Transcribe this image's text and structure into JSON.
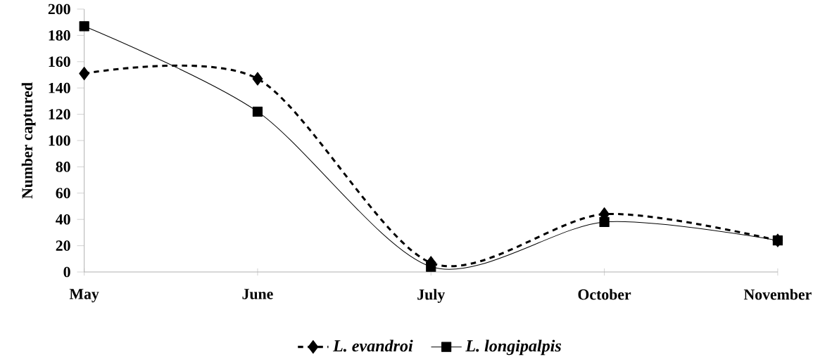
{
  "chart_data": {
    "type": "line",
    "ylabel": "Number captured",
    "categories": [
      "May",
      "June",
      "July",
      "October",
      "November"
    ],
    "series": [
      {
        "name": "L. evandroi",
        "color": "#000000",
        "marker": "diamond",
        "line_style": "dashed",
        "values": [
          151,
          147,
          7,
          44,
          24
        ]
      },
      {
        "name": "L. longipalpis",
        "color": "#000000",
        "marker": "square",
        "line_style": "solid",
        "values": [
          187,
          122,
          4,
          38,
          24
        ]
      }
    ],
    "ylim": [
      0,
      200
    ],
    "yticks": [
      0,
      20,
      40,
      60,
      80,
      100,
      120,
      140,
      160,
      180,
      200
    ],
    "grid": false,
    "legend": "bottom"
  }
}
